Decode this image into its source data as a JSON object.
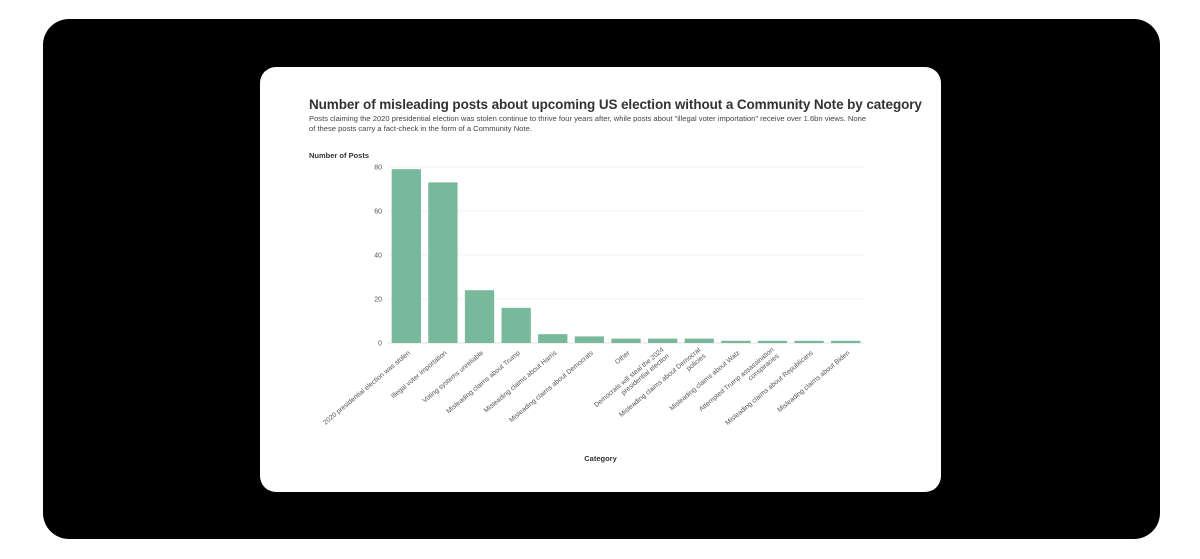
{
  "chart_data": {
    "type": "bar",
    "title": "Number of misleading posts about upcoming US election without a Community Note by category",
    "subtitle": "Posts claiming the 2020 presidential election was stolen continue to thrive four years after, while posts about \"illegal voter importation\" receive over 1.6bn views. None of these posts carry a fact-check in the form of a Community Note.",
    "xlabel": "Category",
    "ylabel": "Number of Posts",
    "ylim": [
      0,
      80
    ],
    "yticks": [
      0,
      20,
      40,
      60,
      80
    ],
    "grid": true,
    "categories": [
      "2020 presidential election was stolen",
      "Illegal voter importation",
      "Voting systems unreliable",
      "Misleading claims about Trump",
      "Misleading claims about Harris",
      "Misleading claims about Democrats",
      "Other",
      "Democrats will steal the 2024 presidential election",
      "Misleading claims about Democrat policies",
      "Misleading claims about Walz",
      "Attempted Trump assassination conspiracies",
      "Misleading claims about Republicans",
      "Misleading claims about Biden"
    ],
    "category_lines": [
      [
        "2020 presidential election was stolen"
      ],
      [
        "Illegal voter importation"
      ],
      [
        "Voting systems unreliable"
      ],
      [
        "Misleading claims about Trump"
      ],
      [
        "Misleading claims about Harris"
      ],
      [
        "Misleading claims about Democrats"
      ],
      [
        "Other"
      ],
      [
        "Democrats will steal the 2024",
        "presidential election"
      ],
      [
        "Misleading claims about Democrat",
        "policies"
      ],
      [
        "Misleading claims about Walz"
      ],
      [
        "Attempted Trump assassination",
        "conspiracies"
      ],
      [
        "Misleading claims about Republicans"
      ],
      [
        "Misleading claims about Biden"
      ]
    ],
    "values": [
      79,
      73,
      24,
      16,
      4,
      3,
      2,
      2,
      2,
      1,
      1,
      1,
      1
    ],
    "color": "#77b99a"
  }
}
